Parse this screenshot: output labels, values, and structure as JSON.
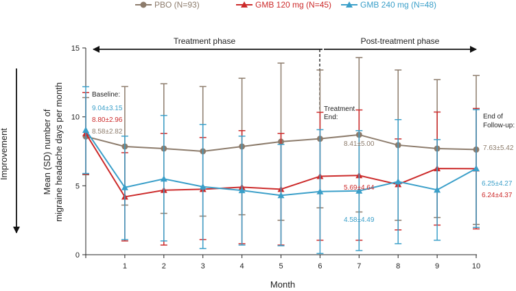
{
  "chart_data": {
    "type": "line",
    "xlabel": "Month",
    "ylabel_line1": "Mean (SD) number of",
    "ylabel_line2": "migraine headache days per month",
    "improvement_label": "Improvement",
    "x": [
      0,
      1,
      2,
      3,
      4,
      5,
      6,
      7,
      8,
      9,
      10
    ],
    "xtick_labels": [
      "",
      "1",
      "2",
      "3",
      "4",
      "5",
      "6",
      "7",
      "8",
      "9",
      "10"
    ],
    "ylim": [
      0,
      15
    ],
    "yticks": [
      0,
      5,
      10,
      15
    ],
    "ytick_labels": [
      "0",
      "5",
      "10",
      "15"
    ],
    "series": [
      {
        "name": "PBO (N=93)",
        "color": "#8c7b6b",
        "marker": "circle",
        "values": [
          8.58,
          7.85,
          7.7,
          7.5,
          7.85,
          8.2,
          8.41,
          8.7,
          7.95,
          7.7,
          7.63
        ],
        "sd_lower": [
          5.8,
          3.6,
          3.0,
          2.8,
          2.9,
          2.5,
          3.4,
          3.1,
          2.5,
          2.7,
          2.2
        ],
        "sd_upper": [
          11.4,
          12.2,
          12.4,
          12.2,
          12.8,
          13.9,
          13.4,
          14.3,
          13.4,
          12.7,
          13.0
        ]
      },
      {
        "name": "GMB 120 mg (N=45)",
        "color": "#cc2a2a",
        "marker": "triangle",
        "values": [
          8.8,
          4.2,
          4.68,
          4.75,
          4.9,
          4.75,
          5.69,
          5.75,
          5.1,
          6.25,
          6.24
        ],
        "sd_lower": [
          5.84,
          1.0,
          0.7,
          1.1,
          0.8,
          0.7,
          1.05,
          1.05,
          1.8,
          2.15,
          1.87
        ],
        "sd_upper": [
          11.76,
          7.4,
          8.8,
          8.5,
          9.0,
          8.8,
          10.33,
          10.5,
          8.4,
          10.35,
          10.61
        ]
      },
      {
        "name": "GMB 240 mg (N=48)",
        "color": "#3a9fc9",
        "marker": "triangle",
        "values": [
          9.04,
          4.88,
          5.5,
          4.93,
          4.66,
          4.3,
          4.58,
          4.63,
          5.3,
          4.7,
          6.25
        ],
        "sd_lower": [
          5.89,
          1.1,
          1.0,
          0.45,
          0.7,
          0.65,
          0.09,
          0.3,
          0.8,
          1.05,
          1.98
        ],
        "sd_upper": [
          12.19,
          8.6,
          10.1,
          9.45,
          8.6,
          8.0,
          9.07,
          9.0,
          9.8,
          8.35,
          10.52
        ]
      }
    ],
    "annotations": {
      "baseline_label": "Baseline:",
      "baseline_240": "9.04±3.15",
      "baseline_120": "8.80±2.96",
      "baseline_pbo": "8.58±2.82",
      "treatment_end_line1": "Treatment",
      "treatment_end_line2": "End:",
      "end_120": "5.69±4.64",
      "end_pbo": "8.41±5.00",
      "end_240": "4.58±4.49",
      "followup_line1": "End of",
      "followup_line2": "Follow-up:",
      "followup_pbo": "7.63±5.42",
      "followup_240": "6.25±4.27",
      "followup_120": "6.24±4.37"
    },
    "phases": {
      "treatment": "Treatment phase",
      "post_treatment": "Post-treatment phase"
    }
  }
}
